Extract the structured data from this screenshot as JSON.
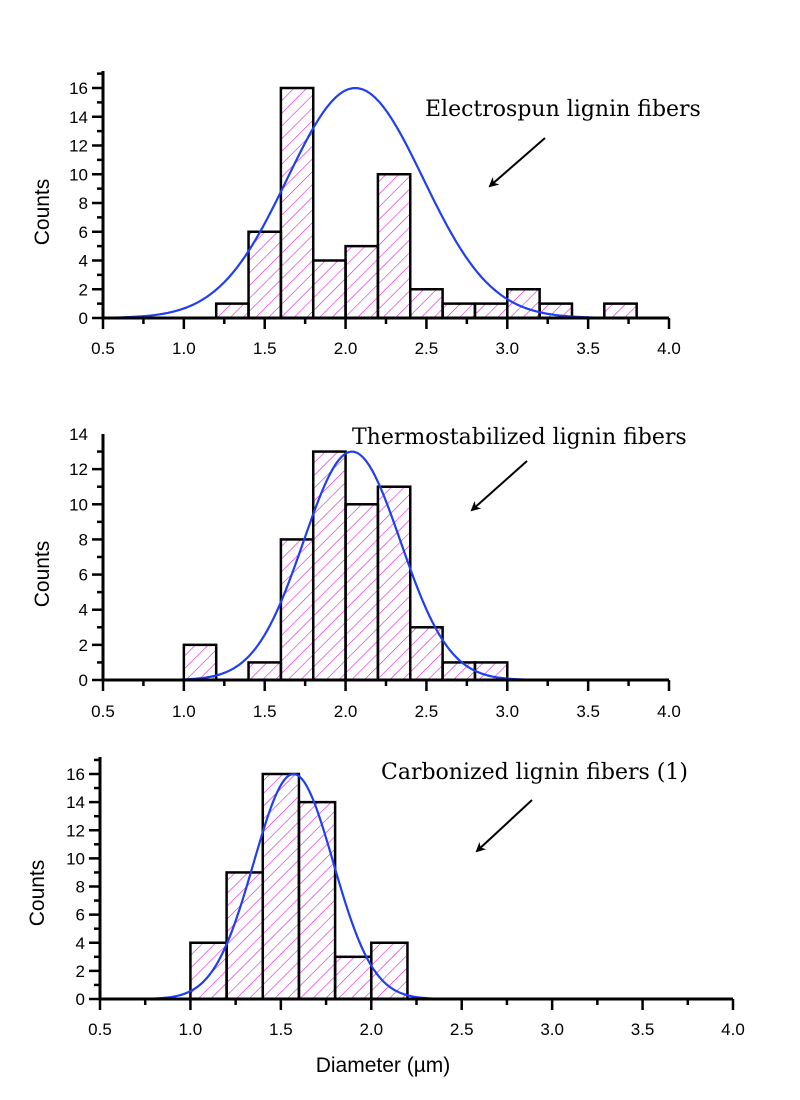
{
  "figure": {
    "xlabel_shared": "Diameter (µm)"
  },
  "colors": {
    "hatch": "#e01ad6",
    "bar_edge": "#000000",
    "fit_curve": "#1f3ff0",
    "axis": "#000000"
  },
  "chart_data": [
    {
      "type": "bar",
      "subtype": "histogram-with-normal-fit",
      "title": "",
      "annotation": "Electrospun lignin fibers",
      "xlabel": "",
      "ylabel": "Counts",
      "xlim": [
        0.5,
        4.0
      ],
      "ylim": [
        0,
        17
      ],
      "x_ticks": [
        "0.5",
        "1.0",
        "1.5",
        "2.0",
        "2.5",
        "3.0",
        "3.5",
        "4.0"
      ],
      "y_ticks": [
        "0",
        "2",
        "4",
        "6",
        "8",
        "10",
        "12",
        "14",
        "16"
      ],
      "bin_width": 0.2,
      "bins": [
        {
          "start": 1.2,
          "end": 1.4,
          "count": 1
        },
        {
          "start": 1.4,
          "end": 1.6,
          "count": 6
        },
        {
          "start": 1.6,
          "end": 1.8,
          "count": 16
        },
        {
          "start": 1.8,
          "end": 2.0,
          "count": 4
        },
        {
          "start": 2.0,
          "end": 2.2,
          "count": 5
        },
        {
          "start": 2.2,
          "end": 2.4,
          "count": 10
        },
        {
          "start": 2.4,
          "end": 2.6,
          "count": 2
        },
        {
          "start": 2.6,
          "end": 2.8,
          "count": 1
        },
        {
          "start": 2.8,
          "end": 3.0,
          "count": 1
        },
        {
          "start": 3.0,
          "end": 3.2,
          "count": 2
        },
        {
          "start": 3.2,
          "end": 3.4,
          "count": 1
        },
        {
          "start": 3.4,
          "end": 3.6,
          "count": 0
        },
        {
          "start": 3.6,
          "end": 3.8,
          "count": 1
        }
      ],
      "fit": {
        "type": "normal",
        "mean": 2.06,
        "peak": 16,
        "sigma": 0.42,
        "x_range": [
          0.5,
          3.7
        ]
      }
    },
    {
      "type": "bar",
      "subtype": "histogram-with-normal-fit",
      "title": "",
      "annotation": "Thermostabilized lignin fibers",
      "xlabel": "",
      "ylabel": "Counts",
      "xlim": [
        0.5,
        4.0
      ],
      "ylim": [
        0,
        14
      ],
      "x_ticks": [
        "0.5",
        "1.0",
        "1.5",
        "2.0",
        "2.5",
        "3.0",
        "3.5",
        "4.0"
      ],
      "y_ticks": [
        "0",
        "2",
        "4",
        "6",
        "8",
        "10",
        "12",
        "14"
      ],
      "bin_width": 0.2,
      "bins": [
        {
          "start": 1.0,
          "end": 1.2,
          "count": 2
        },
        {
          "start": 1.2,
          "end": 1.4,
          "count": 0
        },
        {
          "start": 1.4,
          "end": 1.6,
          "count": 1
        },
        {
          "start": 1.6,
          "end": 1.8,
          "count": 8
        },
        {
          "start": 1.8,
          "end": 2.0,
          "count": 13
        },
        {
          "start": 2.0,
          "end": 2.2,
          "count": 10
        },
        {
          "start": 2.2,
          "end": 2.4,
          "count": 11
        },
        {
          "start": 2.4,
          "end": 2.6,
          "count": 3
        },
        {
          "start": 2.6,
          "end": 2.8,
          "count": 1
        },
        {
          "start": 2.8,
          "end": 3.0,
          "count": 1
        }
      ],
      "fit": {
        "type": "normal",
        "mean": 2.04,
        "peak": 13,
        "sigma": 0.3,
        "x_range": [
          0.92,
          3.15
        ]
      }
    },
    {
      "type": "bar",
      "subtype": "histogram-with-normal-fit",
      "title": "",
      "annotation": "Carbonized lignin fibers (1)",
      "xlabel": "Diameter (µm)",
      "ylabel": "Counts",
      "xlim": [
        0.5,
        4.0
      ],
      "ylim": [
        0,
        17
      ],
      "x_ticks": [
        "0.5",
        "1.0",
        "1.5",
        "2.0",
        "2.5",
        "3.0",
        "3.5",
        "4.0"
      ],
      "y_ticks": [
        "0",
        "2",
        "4",
        "6",
        "8",
        "10",
        "12",
        "14",
        "16"
      ],
      "bin_width": 0.2,
      "bins": [
        {
          "start": 1.0,
          "end": 1.2,
          "count": 4
        },
        {
          "start": 1.2,
          "end": 1.4,
          "count": 9
        },
        {
          "start": 1.4,
          "end": 1.6,
          "count": 16
        },
        {
          "start": 1.6,
          "end": 1.8,
          "count": 14
        },
        {
          "start": 1.8,
          "end": 2.0,
          "count": 3
        },
        {
          "start": 2.0,
          "end": 2.2,
          "count": 4
        }
      ],
      "fit": {
        "type": "normal",
        "mean": 1.57,
        "peak": 16,
        "sigma": 0.22,
        "x_range": [
          0.75,
          2.4
        ]
      }
    }
  ]
}
